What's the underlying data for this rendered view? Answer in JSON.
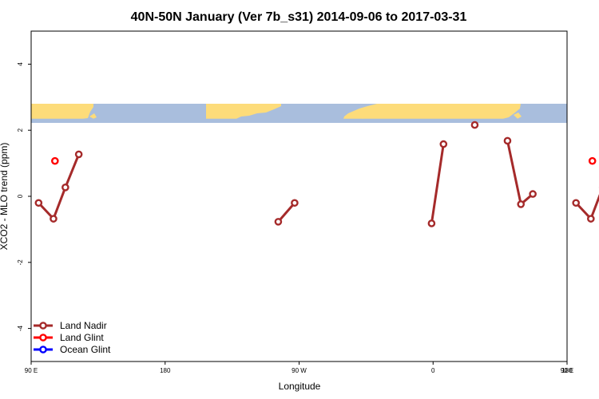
{
  "chart_data": {
    "type": "line",
    "title": "40N-50N January (Ver 7b_s31)   2014-09-06 to 2017-03-31",
    "xlabel": "Longitude",
    "ylabel": "XCO2 - MLO trend (ppm)",
    "xlim": [
      90,
      450
    ],
    "ylim": [
      -5,
      5
    ],
    "x_ticks": [
      {
        "value": 90,
        "label": "90 E"
      },
      {
        "value": 180,
        "label": "180"
      },
      {
        "value": 270,
        "label": "90 W"
      },
      {
        "value": 360,
        "label": "0"
      },
      {
        "value": 450,
        "label": "90 E"
      }
    ],
    "x_ticks_extra": [
      {
        "value": 450,
        "label": "180"
      }
    ],
    "y_ticks": [
      {
        "value": -4,
        "label": "-4"
      },
      {
        "value": -2,
        "label": "-2"
      },
      {
        "value": 0,
        "label": "0"
      },
      {
        "value": 2,
        "label": "2"
      },
      {
        "value": 4,
        "label": "4"
      }
    ],
    "grid": false,
    "legend_position": "bottom-left",
    "map_strip": {
      "y_range": [
        2.35,
        2.95
      ],
      "land_color": "#fddc7a",
      "ocean_color": "#a9bedd"
    },
    "series": [
      {
        "name": "Land Nadir",
        "color": "#a52a2a",
        "segments": [
          [
            {
              "x": 95,
              "y": -0.2
            },
            {
              "x": 105,
              "y": -0.68
            },
            {
              "x": 113,
              "y": 0.27
            },
            {
              "x": 122,
              "y": 1.27
            }
          ],
          [
            {
              "x": 256,
              "y": -0.77
            },
            {
              "x": 267,
              "y": -0.2
            }
          ],
          [
            {
              "x": 359,
              "y": -0.82
            },
            {
              "x": 367,
              "y": 1.58
            }
          ],
          [
            {
              "x": 388,
              "y": 2.16
            }
          ],
          [
            {
              "x": 410,
              "y": 1.68
            },
            {
              "x": 419,
              "y": -0.24
            },
            {
              "x": 427,
              "y": 0.07
            }
          ],
          [
            {
              "x": 456,
              "y": -0.2
            },
            {
              "x": 466,
              "y": -0.68
            },
            {
              "x": 474,
              "y": 0.27
            },
            {
              "x": 483,
              "y": 1.27
            }
          ]
        ]
      },
      {
        "name": "Land Glint",
        "color": "#ff0000",
        "segments": [
          [
            {
              "x": 106,
              "y": 1.07
            }
          ],
          [
            {
              "x": 467,
              "y": 1.07
            }
          ]
        ]
      },
      {
        "name": "Ocean Glint",
        "color": "#0000ff",
        "segments": []
      }
    ]
  }
}
